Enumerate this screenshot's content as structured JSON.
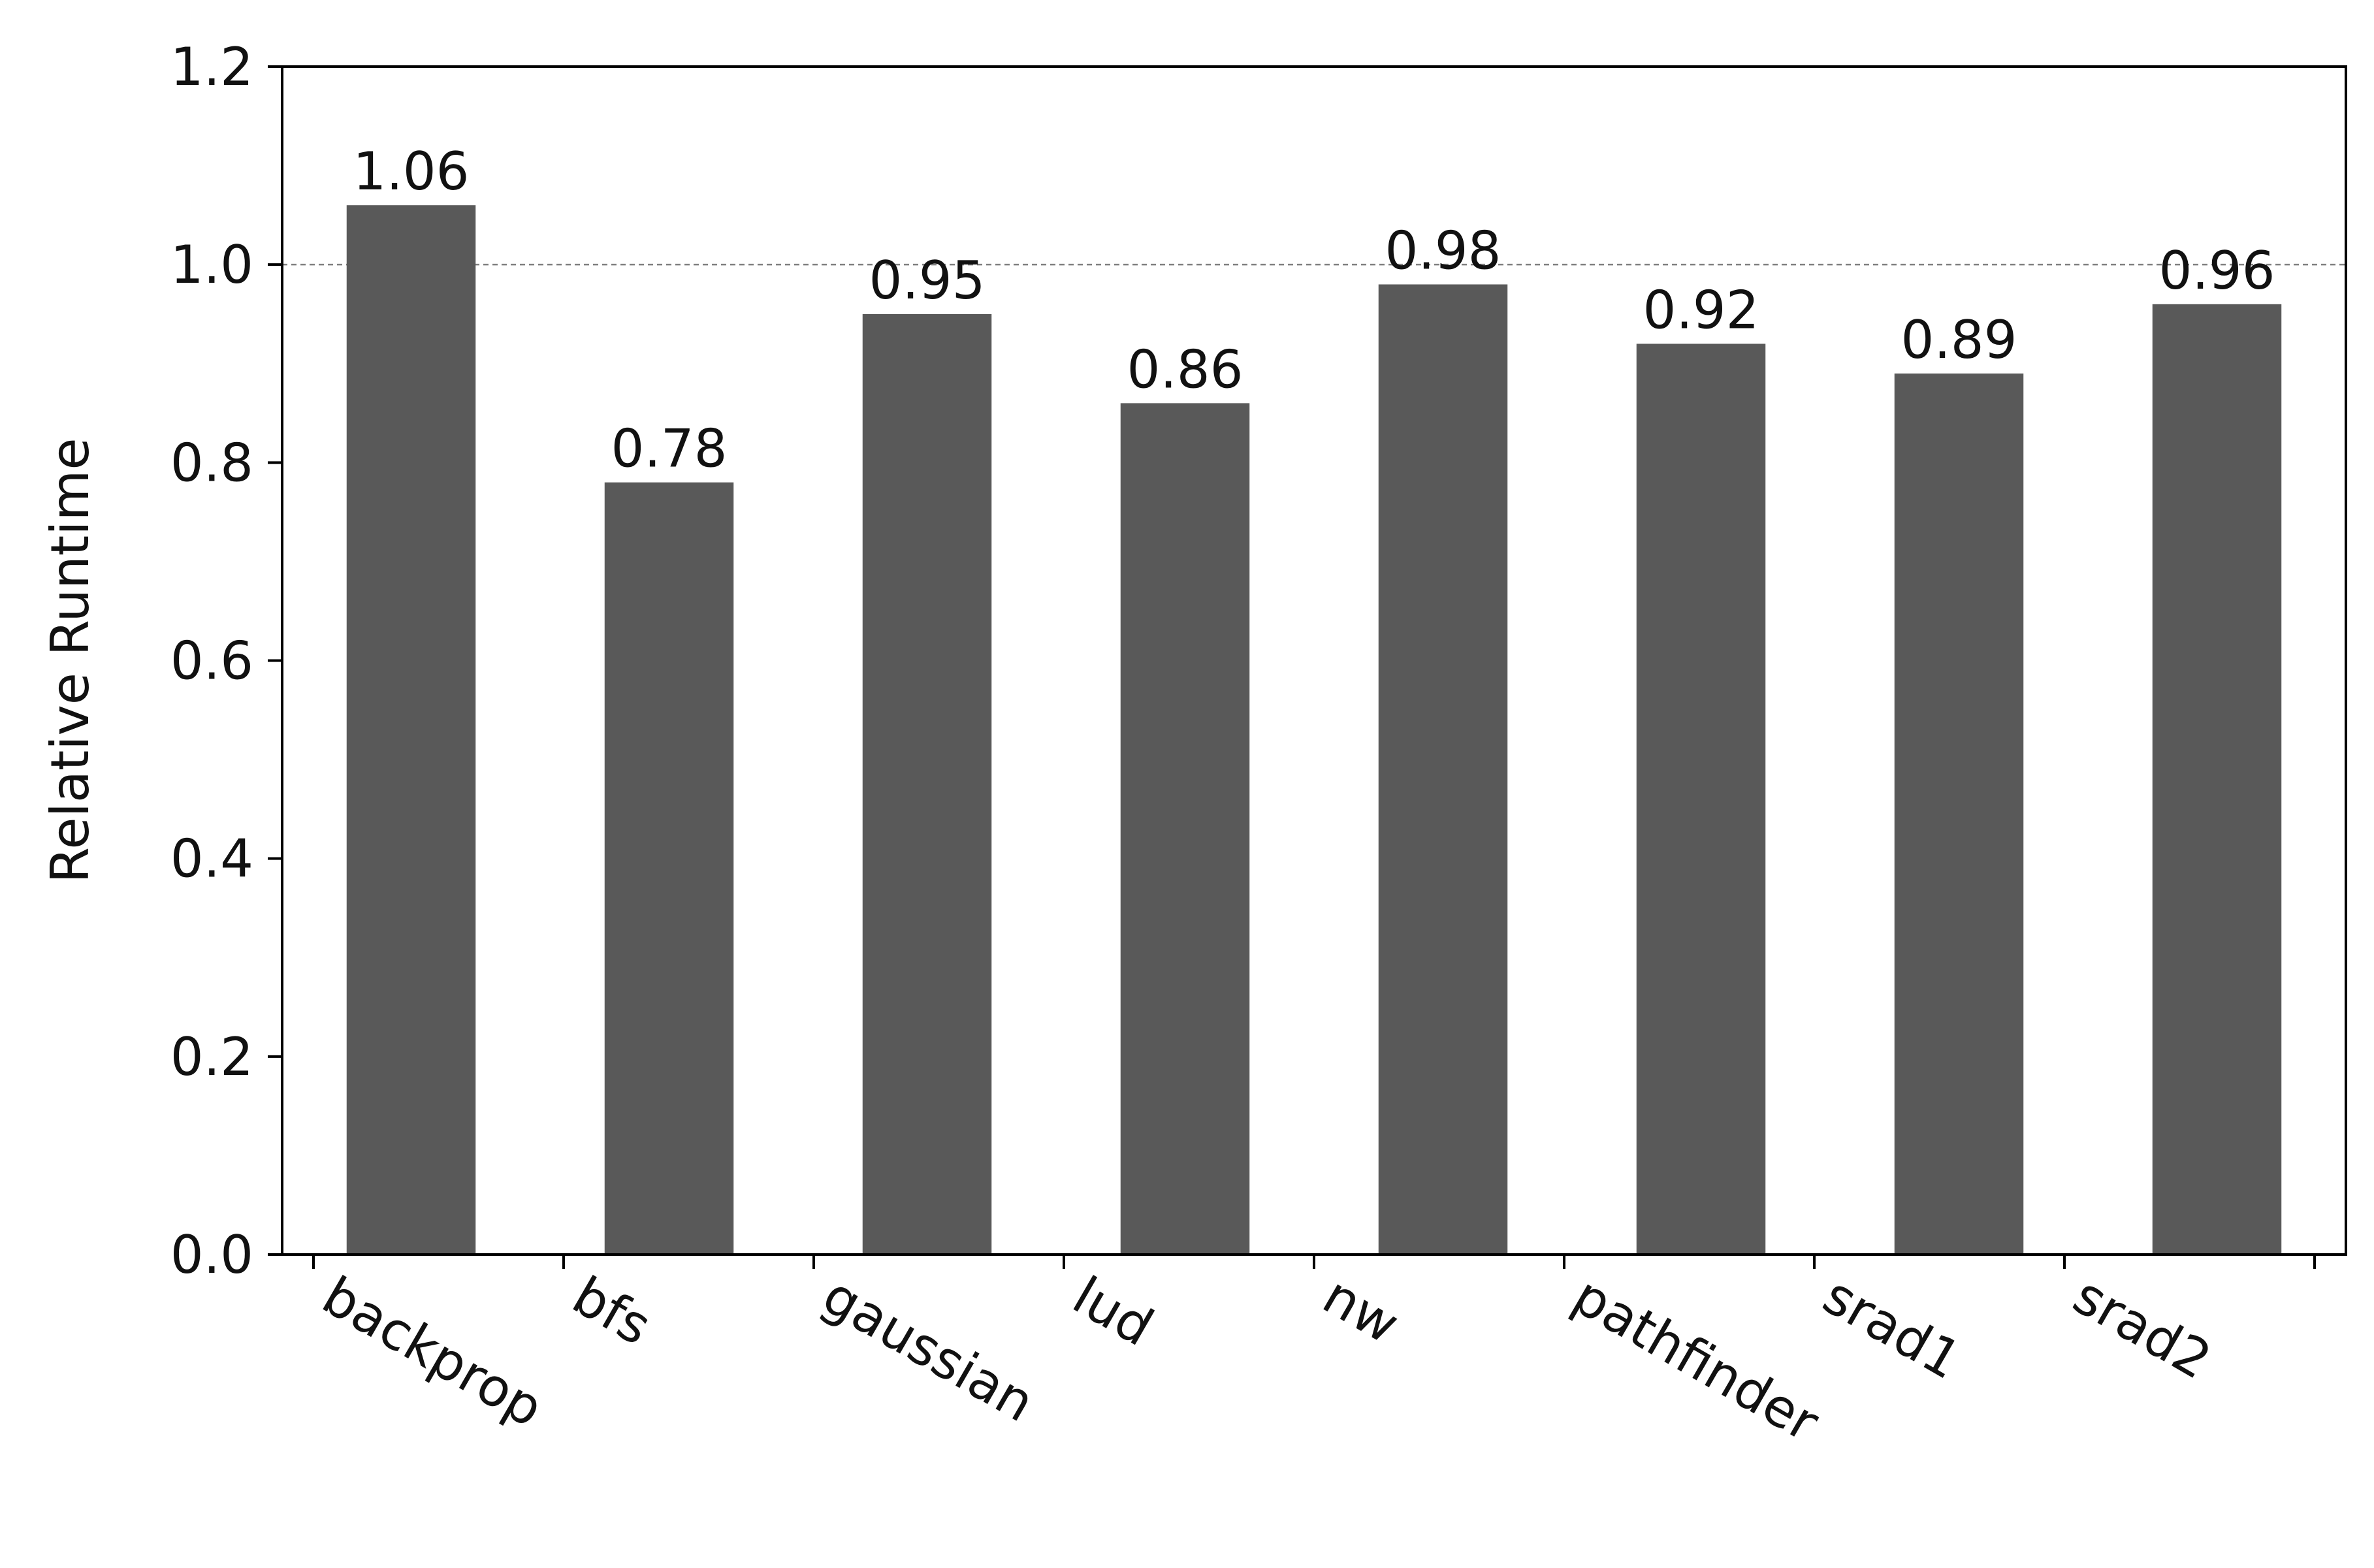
{
  "chart_data": {
    "type": "bar",
    "title": "",
    "xlabel": "",
    "ylabel": "Relative Runtime",
    "categories": [
      "backprop",
      "bfs",
      "gaussian",
      "lud",
      "nw",
      "pathfinder",
      "srad1",
      "srad2"
    ],
    "values": [
      1.06,
      0.78,
      0.95,
      0.86,
      0.98,
      0.92,
      0.89,
      0.96
    ],
    "value_labels": [
      "1.06",
      "0.78",
      "0.95",
      "0.86",
      "0.98",
      "0.92",
      "0.89",
      "0.96"
    ],
    "ylim": [
      0,
      1.2
    ],
    "yticks": [
      0.0,
      0.2,
      0.4,
      0.6,
      0.8,
      1.0,
      1.2
    ],
    "ytick_labels": [
      "0.0",
      "0.2",
      "0.4",
      "0.6",
      "0.8",
      "1.0",
      "1.2"
    ],
    "reference_line": 1.0,
    "bar_color": "#595959",
    "reference_line_color": "#808080",
    "grid": false,
    "legend": "none"
  }
}
